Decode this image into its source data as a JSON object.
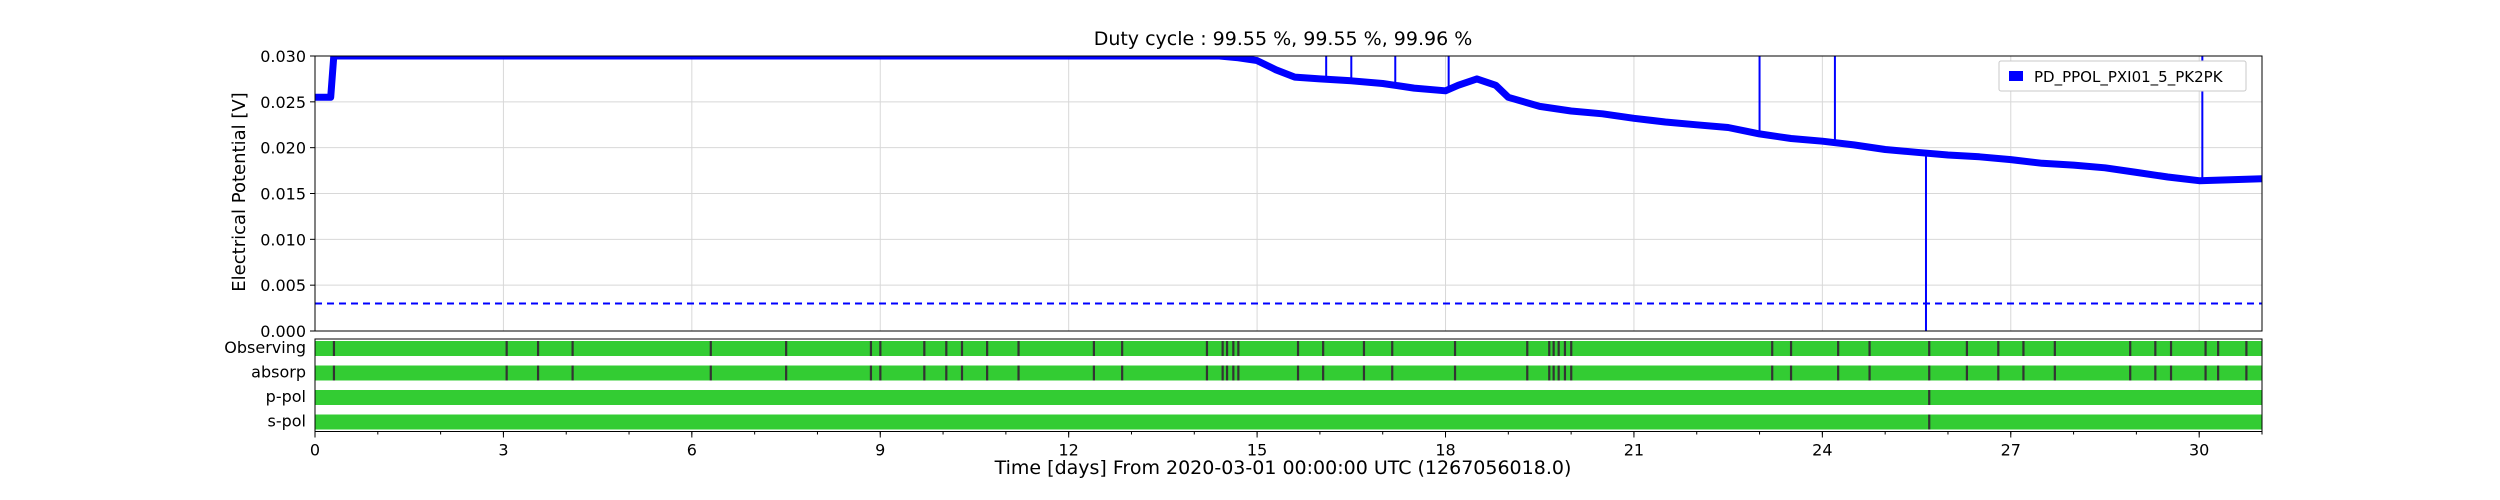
{
  "chart_data": {
    "type": "line",
    "title": "Duty cycle : 99.55 %, 99.55 %, 99.96 %",
    "xlabel": "Time [days] From 2020-03-01 00:00:00 UTC (1267056018.0)",
    "ylabel": "Electrical Potential [V]",
    "xlim": [
      0,
      31
    ],
    "ylim": [
      0,
      0.03
    ],
    "x_ticks": [
      "0",
      "3",
      "6",
      "9",
      "12",
      "15",
      "18",
      "21",
      "24",
      "27",
      "30"
    ],
    "y_ticks": [
      "0.000",
      "0.005",
      "0.010",
      "0.015",
      "0.020",
      "0.025",
      "0.030"
    ],
    "grid": true,
    "legend_position": "top-right",
    "series": [
      {
        "name": "PD_PPOL_PXI01_5_PK2PK",
        "color": "#0000ff",
        "points": [
          [
            0.0,
            0.0255
          ],
          [
            0.25,
            0.0255
          ],
          [
            0.3,
            0.03
          ],
          [
            14.4,
            0.03
          ],
          [
            14.7,
            0.0298
          ],
          [
            15.0,
            0.0295
          ],
          [
            15.3,
            0.0285
          ],
          [
            15.6,
            0.0277
          ],
          [
            16.0,
            0.0275
          ],
          [
            16.5,
            0.0273
          ],
          [
            17.0,
            0.027
          ],
          [
            17.5,
            0.0265
          ],
          [
            18.0,
            0.0262
          ],
          [
            18.2,
            0.0268
          ],
          [
            18.5,
            0.0275
          ],
          [
            18.8,
            0.0268
          ],
          [
            19.0,
            0.0255
          ],
          [
            19.5,
            0.0245
          ],
          [
            20.0,
            0.024
          ],
          [
            20.5,
            0.0237
          ],
          [
            21.0,
            0.0232
          ],
          [
            21.5,
            0.0228
          ],
          [
            22.0,
            0.0225
          ],
          [
            22.5,
            0.0222
          ],
          [
            23.0,
            0.0215
          ],
          [
            23.5,
            0.021
          ],
          [
            24.0,
            0.0207
          ],
          [
            24.5,
            0.0203
          ],
          [
            25.0,
            0.0198
          ],
          [
            25.5,
            0.0195
          ],
          [
            26.0,
            0.0192
          ],
          [
            26.5,
            0.019
          ],
          [
            27.0,
            0.0187
          ],
          [
            27.5,
            0.0183
          ],
          [
            28.0,
            0.0181
          ],
          [
            28.5,
            0.0178
          ],
          [
            29.0,
            0.0173
          ],
          [
            29.5,
            0.0168
          ],
          [
            30.0,
            0.0164
          ],
          [
            30.5,
            0.0165
          ],
          [
            31.0,
            0.0166
          ]
        ],
        "spikes": [
          [
            16.1,
            0.03
          ],
          [
            16.5,
            0.03
          ],
          [
            17.2,
            0.03
          ],
          [
            18.05,
            0.03
          ],
          [
            23.0,
            0.03
          ],
          [
            24.2,
            0.03
          ],
          [
            25.65,
            0.0
          ],
          [
            30.05,
            0.03
          ]
        ]
      }
    ],
    "threshold": {
      "value": 0.003,
      "style": "dashed",
      "color": "#0000ff"
    },
    "segments": {
      "fill_color": "#33cc33",
      "gap_color": "#333333",
      "rows": [
        {
          "label": "Observing",
          "gaps": [
            0.3,
            3.05,
            3.55,
            4.1,
            6.3,
            7.5,
            8.85,
            9.0,
            9.7,
            10.05,
            10.3,
            10.7,
            11.2,
            12.4,
            12.85,
            14.2,
            14.45,
            14.52,
            14.62,
            14.7,
            15.65,
            16.05,
            16.7,
            17.15,
            18.15,
            19.3,
            19.65,
            19.72,
            19.8,
            19.9,
            20.0,
            23.2,
            23.5,
            24.25,
            24.75,
            25.7,
            26.3,
            26.8,
            27.2,
            27.7,
            28.9,
            29.3,
            29.55,
            30.1,
            30.3,
            30.75
          ]
        },
        {
          "label": "absorp",
          "gaps": [
            0.3,
            3.05,
            3.55,
            4.1,
            6.3,
            7.5,
            8.85,
            9.0,
            9.7,
            10.05,
            10.3,
            10.7,
            11.2,
            12.4,
            12.85,
            14.2,
            14.45,
            14.52,
            14.62,
            14.7,
            15.65,
            16.05,
            16.7,
            17.15,
            18.15,
            19.3,
            19.65,
            19.72,
            19.8,
            19.9,
            20.0,
            23.2,
            23.5,
            24.25,
            24.75,
            25.7,
            26.3,
            26.8,
            27.2,
            27.7,
            28.9,
            29.3,
            29.55,
            30.1,
            30.3,
            30.75
          ]
        },
        {
          "label": "p-pol",
          "gaps": [
            25.7
          ]
        },
        {
          "label": "s-pol",
          "gaps": [
            25.7
          ]
        }
      ]
    }
  }
}
